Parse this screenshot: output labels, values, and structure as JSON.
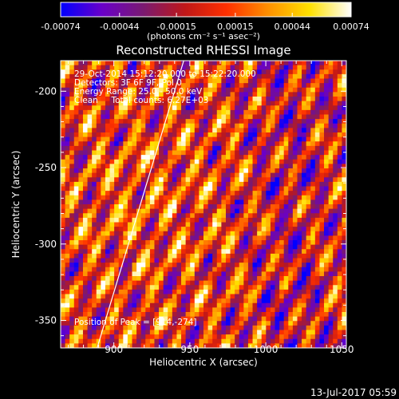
{
  "colorbar": {
    "tick_labels": [
      "-0.00074",
      "-0.00044",
      "-0.00015",
      "0.00015",
      "0.00044",
      "0.00074"
    ],
    "tick_values": [
      -0.00074,
      -0.00044,
      -0.00015,
      0.00015,
      0.00044,
      0.00074
    ],
    "range": [
      -0.00074,
      0.00074
    ],
    "units_label": "(photons cm⁻² s⁻¹ asec⁻²)",
    "colormap": [
      "#0000ff",
      "#6a00c8",
      "#7a1a70",
      "#c01818",
      "#ff3000",
      "#ff9000",
      "#ffe000",
      "#ffffff"
    ]
  },
  "chart_data": {
    "type": "heatmap",
    "title": "Reconstructed RHESSI Image",
    "xlabel": "Heliocentric X (arcsec)",
    "ylabel": "Heliocentric Y (arcsec)",
    "xlim": [
      865,
      1053
    ],
    "ylim": [
      -368,
      -180
    ],
    "x_ticks": [
      900,
      950,
      1000,
      1050
    ],
    "y_ticks": [
      -200,
      -250,
      -300,
      -350
    ],
    "pattern": "diagonal fringe stripes (back-projection artifact)",
    "limb_line": {
      "x": [
        889,
        946
      ],
      "y": [
        -368,
        -180
      ],
      "color": "#ffffff"
    },
    "peak": [
      914,
      -274
    ],
    "annotations": [
      "29-Oct-2014 15:12:20.000 to 15:22:20.000",
      "Detectors: 3F 6F 9F, Pol 0",
      "Energy Range: 25.0 - 50.0 keV",
      "Clean     Total counts: 6.27E+03"
    ],
    "peak_label": "Position of Peak = [914,-274]"
  },
  "footer": {
    "timestamp": "13-Jul-2017 05:59"
  }
}
